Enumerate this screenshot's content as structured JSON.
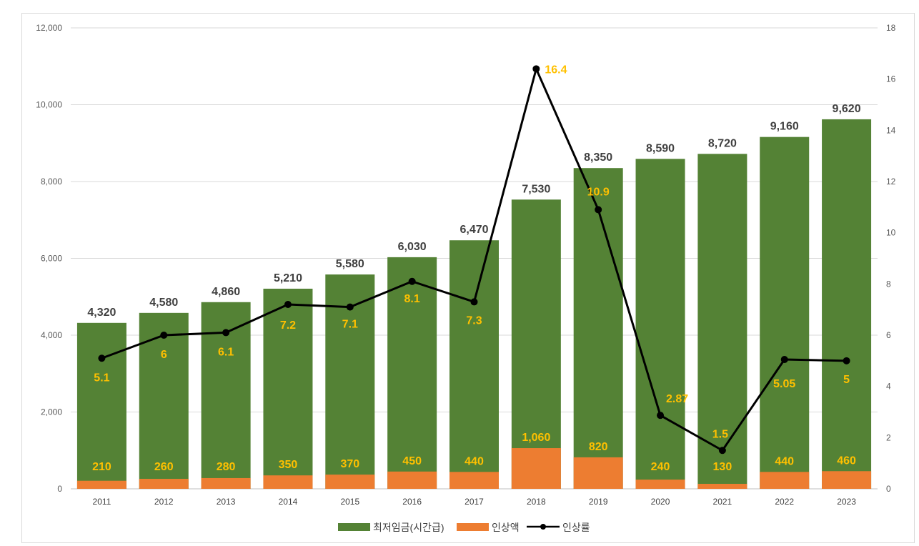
{
  "chart_data": {
    "type": "bar",
    "categories": [
      "2011",
      "2012",
      "2013",
      "2014",
      "2015",
      "2016",
      "2017",
      "2018",
      "2019",
      "2020",
      "2021",
      "2022",
      "2023"
    ],
    "series": [
      {
        "name": "최저임금(시간급)",
        "type": "bar",
        "axis": "left",
        "values": [
          4320,
          4580,
          4860,
          5210,
          5580,
          6030,
          6470,
          7530,
          8350,
          8590,
          8720,
          9160,
          9620
        ],
        "labels": [
          "4,320",
          "4,580",
          "4,860",
          "5,210",
          "5,580",
          "6,030",
          "6,470",
          "7,530",
          "8,350",
          "8,590",
          "8,720",
          "9,160",
          "9,620"
        ]
      },
      {
        "name": "인상액",
        "type": "bar",
        "axis": "left",
        "values": [
          210,
          260,
          280,
          350,
          370,
          450,
          440,
          1060,
          820,
          240,
          130,
          440,
          460
        ],
        "labels": [
          "210",
          "260",
          "280",
          "350",
          "370",
          "450",
          "440",
          "1,060",
          "820",
          "240",
          "130",
          "440",
          "460"
        ]
      },
      {
        "name": "인상률",
        "type": "line",
        "axis": "right",
        "values": [
          5.1,
          6,
          6.1,
          7.2,
          7.1,
          8.1,
          7.3,
          16.4,
          10.9,
          2.87,
          1.5,
          5.05,
          5
        ],
        "labels": [
          "5.1",
          "6",
          "6.1",
          "7.2",
          "7.1",
          "8.1",
          "7.3",
          "16.4",
          "10.9",
          "2.87",
          "1.5",
          "5.05",
          "5"
        ]
      }
    ],
    "ylim": [
      0,
      12000
    ],
    "y2lim": [
      0,
      18
    ],
    "yticks": [
      "0",
      "2,000",
      "4,000",
      "6,000",
      "8,000",
      "10,000",
      "12,000"
    ],
    "y2ticks": [
      "0",
      "2",
      "4",
      "6",
      "8",
      "10",
      "12",
      "14",
      "16",
      "18"
    ],
    "grid": true,
    "legend_position": "bottom",
    "colors": {
      "wage": "#548235",
      "increase": "#ed7d31",
      "rate": "#000000",
      "label_yellow": "#ffc000",
      "label_dark": "#404040"
    }
  }
}
